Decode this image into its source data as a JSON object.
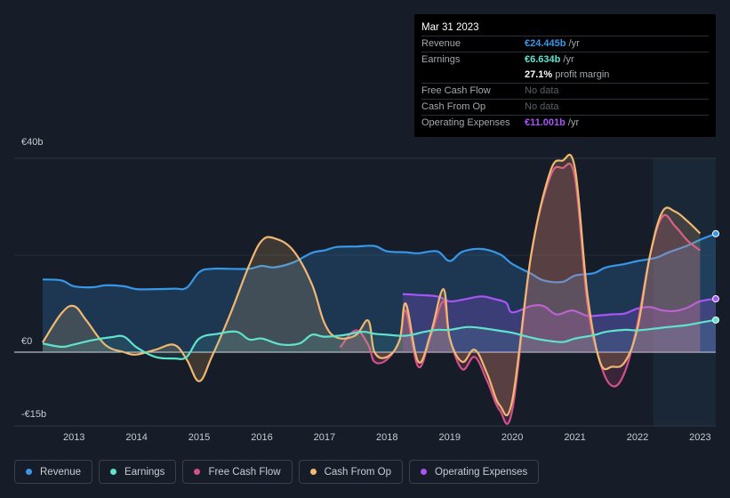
{
  "tooltip": {
    "date": "Mar 31 2023",
    "rows": [
      {
        "label": "Revenue",
        "value": "€24.445b",
        "unit": " /yr",
        "color": "#3797e8"
      },
      {
        "label": "Earnings",
        "value": "€6.634b",
        "unit": " /yr",
        "color": "#5fe3cc"
      },
      {
        "label": "",
        "value": "27.1%",
        "unit": " profit margin",
        "color": "#ffffff"
      },
      {
        "label": "Free Cash Flow",
        "value": "No data",
        "unit": "",
        "color": "#5a6068"
      },
      {
        "label": "Cash From Op",
        "value": "No data",
        "unit": "",
        "color": "#5a6068"
      },
      {
        "label": "Operating Expenses",
        "value": "€11.001b",
        "unit": " /yr",
        "color": "#a855f7"
      }
    ]
  },
  "legend": [
    {
      "label": "Revenue",
      "color": "#3797e8"
    },
    {
      "label": "Earnings",
      "color": "#5fe3cc"
    },
    {
      "label": "Free Cash Flow",
      "color": "#d3508a"
    },
    {
      "label": "Cash From Op",
      "color": "#f0b870"
    },
    {
      "label": "Operating Expenses",
      "color": "#a855f7"
    }
  ],
  "chart_data": {
    "type": "area",
    "title": "",
    "xlabel": "",
    "ylabel": "",
    "ylim": [
      -15,
      40
    ],
    "ytick_labels": [
      "€40b",
      "€0",
      "-€15b"
    ],
    "yticks": [
      40,
      0,
      -15
    ],
    "xticks": [
      2013,
      2014,
      2015,
      2016,
      2017,
      2018,
      2019,
      2020,
      2021,
      2022,
      2023
    ],
    "xlim": [
      2012.5,
      2023.25
    ],
    "forecast_start": 2022.25,
    "series": [
      {
        "name": "Revenue",
        "color": "#3797e8",
        "x": [
          2012.5,
          2012.8,
          2013.0,
          2013.3,
          2013.5,
          2013.8,
          2014.0,
          2014.3,
          2014.6,
          2014.8,
          2015.0,
          2015.2,
          2015.5,
          2015.8,
          2016.0,
          2016.2,
          2016.5,
          2016.8,
          2017.0,
          2017.2,
          2017.5,
          2017.8,
          2018.0,
          2018.3,
          2018.5,
          2018.8,
          2019.0,
          2019.2,
          2019.5,
          2019.8,
          2020.0,
          2020.3,
          2020.5,
          2020.8,
          2021.0,
          2021.3,
          2021.5,
          2021.8,
          2022.0,
          2022.3,
          2022.5,
          2022.8,
          2023.0,
          2023.25
        ],
        "y": [
          15,
          14.8,
          13.6,
          13.4,
          13.8,
          13.6,
          13,
          13,
          13.1,
          13.3,
          16.5,
          17.2,
          17.2,
          17.2,
          17.8,
          17.5,
          18.5,
          20.5,
          21,
          21.7,
          21.8,
          21.9,
          20.8,
          20.6,
          20.4,
          20.8,
          18.8,
          20.7,
          21.3,
          20.2,
          18.2,
          16.2,
          14.8,
          14.5,
          15.8,
          16.3,
          17.5,
          18.2,
          18.8,
          19.5,
          20.6,
          22,
          23.2,
          24.445
        ]
      },
      {
        "name": "Earnings",
        "color": "#5fe3cc",
        "x": [
          2012.5,
          2012.8,
          2013.0,
          2013.3,
          2013.6,
          2013.8,
          2014.0,
          2014.3,
          2014.6,
          2014.8,
          2015.0,
          2015.3,
          2015.6,
          2015.8,
          2016.0,
          2016.3,
          2016.6,
          2016.8,
          2017.0,
          2017.3,
          2017.6,
          2017.8,
          2018.0,
          2018.3,
          2018.6,
          2018.8,
          2019.0,
          2019.3,
          2019.6,
          2019.8,
          2020.0,
          2020.3,
          2020.5,
          2020.8,
          2021.0,
          2021.3,
          2021.5,
          2021.8,
          2022.0,
          2022.3,
          2022.5,
          2022.8,
          2023.0,
          2023.25
        ],
        "y": [
          1.8,
          1.1,
          1.6,
          2.5,
          3.1,
          3.2,
          1,
          -1,
          -1.3,
          -1,
          2.8,
          3.8,
          4.2,
          2.6,
          2.8,
          1.6,
          1.8,
          3.6,
          3.2,
          3.5,
          4.2,
          3.8,
          3.6,
          3.4,
          4.2,
          4.6,
          4.6,
          5.2,
          4.8,
          4.4,
          4.0,
          3.0,
          2.5,
          2.1,
          2.8,
          3.5,
          4.2,
          4.6,
          4.5,
          4.9,
          5.2,
          5.6,
          6.1,
          6.634
        ]
      },
      {
        "name": "Free Cash Flow",
        "color": "#d3508a",
        "x": [
          2017.25,
          2017.5,
          2017.7,
          2017.8,
          2018.0,
          2018.2,
          2018.3,
          2018.5,
          2018.7,
          2018.9,
          2019.0,
          2019.2,
          2019.4,
          2019.6,
          2019.8,
          2020.0,
          2020.3,
          2020.6,
          2020.8,
          2021.0,
          2021.2,
          2021.4,
          2021.6,
          2021.8,
          2022.0,
          2022.2,
          2022.4,
          2022.6,
          2022.8,
          2023.0
        ],
        "y": [
          1,
          4.5,
          1.5,
          -2,
          -1.5,
          2.5,
          8.5,
          -3,
          3.5,
          10.5,
          3,
          -3.5,
          -1,
          -6,
          -12,
          -12,
          20,
          36,
          38,
          36,
          10,
          -2,
          -7,
          -4,
          6,
          20,
          28,
          26,
          23,
          21
        ]
      },
      {
        "name": "Cash From Op",
        "color": "#f0b870",
        "x": [
          2012.5,
          2012.8,
          2013.0,
          2013.2,
          2013.5,
          2013.8,
          2014.0,
          2014.3,
          2014.6,
          2014.8,
          2015.0,
          2015.2,
          2015.5,
          2015.8,
          2016.0,
          2016.2,
          2016.5,
          2016.8,
          2017.0,
          2017.2,
          2017.5,
          2017.7,
          2017.8,
          2018.0,
          2018.2,
          2018.3,
          2018.5,
          2018.7,
          2018.9,
          2019.0,
          2019.2,
          2019.4,
          2019.6,
          2019.8,
          2020.0,
          2020.3,
          2020.6,
          2020.8,
          2021.0,
          2021.2,
          2021.4,
          2021.6,
          2021.8,
          2022.0,
          2022.2,
          2022.4,
          2022.6,
          2022.8,
          2023.0
        ],
        "y": [
          2,
          8,
          9.5,
          6.5,
          1.5,
          0,
          -0.5,
          0.5,
          1.5,
          -1.5,
          -6,
          -1,
          8,
          18,
          23,
          23.5,
          21,
          14,
          6,
          3,
          3.5,
          6.5,
          0,
          -1,
          2.5,
          10,
          -2,
          4,
          13,
          3,
          -2,
          0.5,
          -4.5,
          -11,
          -10,
          20,
          37,
          39.5,
          38,
          12,
          -2,
          -3,
          -2,
          5,
          20,
          29,
          29,
          27,
          24.5
        ]
      },
      {
        "name": "Operating Expenses",
        "color": "#a855f7",
        "x": [
          2018.25,
          2018.5,
          2018.8,
          2019.0,
          2019.2,
          2019.5,
          2019.7,
          2019.9,
          2020.0,
          2020.3,
          2020.5,
          2020.7,
          2020.9,
          2021.0,
          2021.2,
          2021.4,
          2021.6,
          2021.8,
          2022.0,
          2022.2,
          2022.4,
          2022.6,
          2022.8,
          2023.0,
          2023.25
        ],
        "y": [
          12,
          11.8,
          11.5,
          10.5,
          10.8,
          11.5,
          11,
          10.2,
          8.2,
          9.5,
          9.5,
          7.8,
          8.5,
          8.5,
          7.5,
          7.6,
          7.8,
          8,
          9,
          9.3,
          8.6,
          8.5,
          9.2,
          10.5,
          11.001
        ]
      }
    ]
  }
}
